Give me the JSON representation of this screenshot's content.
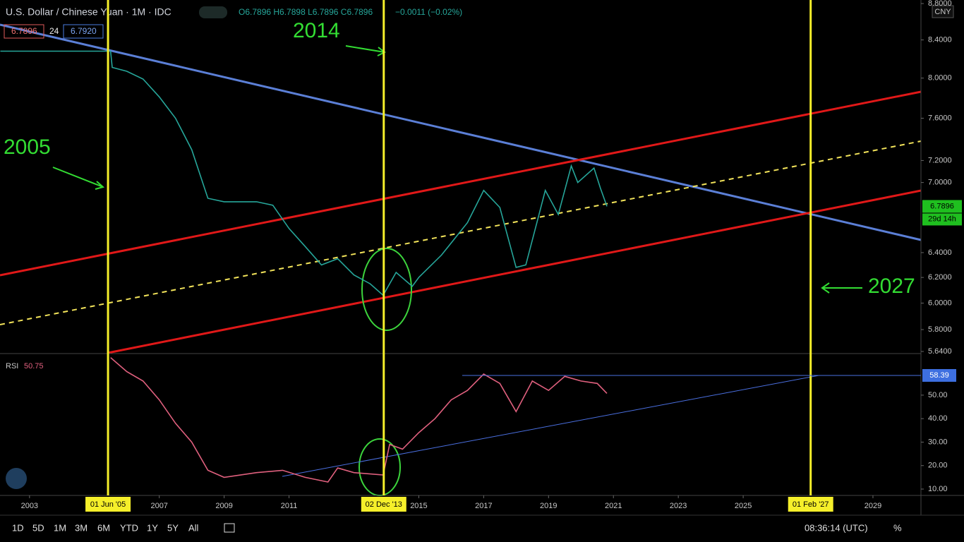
{
  "header": {
    "symbol": "U.S. Dollar / Chinese Yuan · 1M · IDC",
    "ohlc": "O6.7896 H6.7898 L6.7896 C6.7896",
    "change": "−0.0011 (−0.02%)",
    "sell": "6.7896",
    "spread": "24",
    "buy": "6.7920"
  },
  "currency": "CNY",
  "annotations": [
    "2005",
    "2014",
    "2027"
  ],
  "toolbar": {
    "ranges": [
      "1D",
      "5D",
      "1M",
      "3M",
      "6M",
      "YTD",
      "1Y",
      "5Y",
      "All"
    ],
    "clock": "08:36:14 (UTC)",
    "percent": "%"
  },
  "chart_data": [
    {
      "type": "line",
      "color": "#26a69a",
      "x": [
        2002.1,
        2005.5,
        2005.55,
        2006.0,
        2006.5,
        2007.0,
        2007.5,
        2008.0,
        2008.5,
        2009.0,
        2010.0,
        2010.5,
        2011.0,
        2011.5,
        2012.0,
        2012.5,
        2013.0,
        2013.5,
        2013.9,
        2014.3,
        2014.8,
        2015.0,
        2015.7,
        2016.5,
        2017.0,
        2017.5,
        2018.0,
        2018.3,
        2018.9,
        2019.3,
        2019.7,
        2019.9,
        2020.4,
        2020.6,
        2020.8
      ],
      "values": [
        8.28,
        8.28,
        8.11,
        8.07,
        7.99,
        7.81,
        7.6,
        7.3,
        6.86,
        6.83,
        6.83,
        6.8,
        6.6,
        6.45,
        6.3,
        6.35,
        6.22,
        6.15,
        6.06,
        6.24,
        6.13,
        6.2,
        6.38,
        6.65,
        6.93,
        6.78,
        6.28,
        6.3,
        6.93,
        6.72,
        7.15,
        7.0,
        7.13,
        6.95,
        6.79
      ],
      "xlim": [
        2002.09,
        2030.48
      ],
      "xticks": [
        2003,
        2007,
        2009,
        2011,
        2015,
        2017,
        2019,
        2021,
        2023,
        2025,
        2029
      ],
      "ylim": [
        5.63,
        8.84
      ],
      "log_scale": true,
      "yticks": [
        {
          "value": 8.8,
          "label": "8.8000"
        },
        {
          "value": 8.4,
          "label": "8.4000"
        },
        {
          "value": 8.0,
          "label": "8.0000"
        },
        {
          "value": 7.6,
          "label": "7.6000"
        },
        {
          "value": 7.2,
          "label": "7.2000"
        },
        {
          "value": 7.0,
          "label": "7.0000"
        },
        {
          "value": 6.4,
          "label": "6.4000"
        },
        {
          "value": 6.2,
          "label": "6.2000"
        },
        {
          "value": 6.0,
          "label": "6.0000"
        },
        {
          "value": 5.8,
          "label": "5.8000"
        },
        {
          "value": 5.64,
          "label": "5.6400"
        }
      ],
      "last_value": 6.7896,
      "countdown": "29d 14h",
      "markers": [
        {
          "x": 2005.42,
          "label": "01 Jun '05"
        },
        {
          "x": 2013.92,
          "label": "02 Dec '13"
        },
        {
          "x": 2027.08,
          "label": "01 Feb '27"
        }
      ]
    },
    {
      "type": "line",
      "title": "RSI",
      "color": "#e0607e",
      "x": [
        2005.5,
        2006.0,
        2006.5,
        2007.0,
        2007.5,
        2008.0,
        2008.5,
        2009.0,
        2010.0,
        2010.8,
        2011.5,
        2012.2,
        2012.5,
        2013.0,
        2013.9,
        2014.1,
        2014.5,
        2015.0,
        2015.5,
        2016.0,
        2016.5,
        2017.0,
        2017.5,
        2018.0,
        2018.5,
        2019.0,
        2019.5,
        2020.0,
        2020.5,
        2020.8
      ],
      "values": [
        66,
        60,
        56,
        48,
        38,
        30,
        18,
        15,
        17,
        18,
        15,
        13,
        19,
        17,
        16,
        29,
        27,
        34,
        40,
        48,
        52,
        59,
        55,
        43,
        56,
        52,
        58,
        56,
        55,
        50.75
      ],
      "ylim": [
        7.9,
        67.4
      ],
      "yticks": [
        {
          "value": 50,
          "label": "50.00"
        },
        {
          "value": 40,
          "label": "40.00"
        },
        {
          "value": 30,
          "label": "30.00"
        },
        {
          "value": 20,
          "label": "20.00"
        },
        {
          "value": 10,
          "label": "10.00"
        }
      ],
      "current_value": 50.75,
      "level": 58.39
    }
  ]
}
